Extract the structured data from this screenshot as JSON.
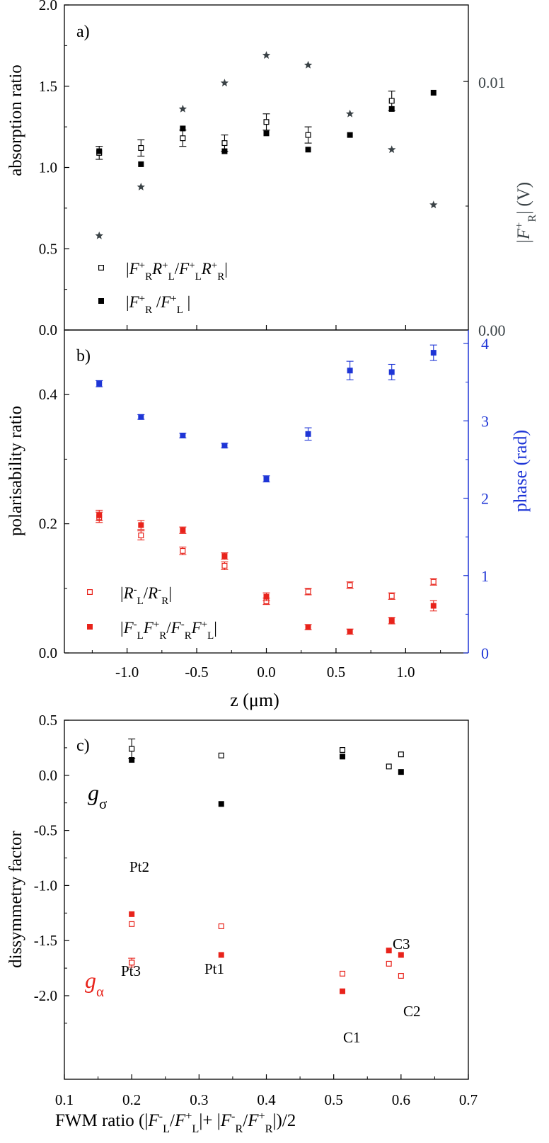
{
  "colors": {
    "black": "#000000",
    "red": "#e8231b",
    "blue": "#1e35d6",
    "grey": "#3a4246"
  },
  "chart_data": [
    {
      "panel_label": "a)",
      "type": "scatter",
      "ylabel": "absorption ratio",
      "ylim": [
        0,
        2
      ],
      "y_ticks": [
        "0.0",
        "0.5",
        "1.0",
        "1.5",
        "2.0"
      ],
      "y2label": "|F⁺R| (V)",
      "y2_scale": "log",
      "y2_ticks": [
        "0.00",
        "0.01"
      ],
      "y2_ticks_note": "right-axis tick labels as printed",
      "legend": [
        {
          "marker": "open-square",
          "label": "|F⁺R R⁺L / F⁺L R⁺R|"
        },
        {
          "marker": "filled-square",
          "label": "|F⁺R / F⁺L|"
        }
      ],
      "series": [
        {
          "name": "|F⁺R R⁺L / F⁺L R⁺R|",
          "marker": "open-square",
          "color": "#000000",
          "x": [
            -1.2,
            -0.9,
            -0.6,
            -0.3,
            0.0,
            0.3,
            0.9
          ],
          "y": [
            1.09,
            1.12,
            1.18,
            1.15,
            1.28,
            1.2,
            1.41
          ],
          "err": [
            0.04,
            0.05,
            0.05,
            0.05,
            0.05,
            0.05,
            0.06
          ]
        },
        {
          "name": "|F⁺R / F⁺L|",
          "marker": "filled-square",
          "color": "#000000",
          "x": [
            -1.2,
            -0.9,
            -0.6,
            -0.3,
            0.0,
            0.3,
            0.6,
            0.9,
            1.2
          ],
          "y": [
            1.1,
            1.02,
            1.24,
            1.1,
            1.21,
            1.11,
            1.2,
            1.36,
            1.46
          ]
        },
        {
          "marker": "star",
          "color": "#3a4246",
          "axis": "right-log",
          "x": [
            -1.2,
            -0.9,
            -0.6,
            -0.3,
            0.0,
            0.3,
            0.6,
            0.9,
            1.2
          ],
          "y_fraction_of_axis": [
            0.29,
            0.44,
            0.68,
            0.76,
            0.845,
            0.815,
            0.665,
            0.555,
            0.385
          ]
        }
      ]
    },
    {
      "panel_label": "b)",
      "type": "scatter",
      "xlabel": "z (μm)",
      "xlim": [
        -1.45,
        1.45
      ],
      "x_ticks": [
        "-1.0",
        "-0.5",
        "0.0",
        "0.5",
        "1.0"
      ],
      "ylabel": "polarisability ratio",
      "ylim": [
        0,
        0.5
      ],
      "y_ticks": [
        "0.0",
        "0.2",
        "0.4"
      ],
      "y2label": "phase (rad)",
      "y2lim": [
        0,
        4
      ],
      "y2_ticks": [
        "0",
        "1",
        "2",
        "3",
        "4"
      ],
      "legend": [
        {
          "marker": "open-square",
          "label": "|R⁻L / R⁻R|"
        },
        {
          "marker": "filled-square",
          "label": "|F⁻L F⁺R / F⁻R F⁺L|"
        }
      ],
      "series": [
        {
          "name": "|R⁻L / R⁻R|",
          "marker": "open-square",
          "color": "#e8231b",
          "x": [
            -1.2,
            -0.9,
            -0.6,
            -0.3,
            0.0,
            0.3,
            0.6,
            0.9,
            1.2
          ],
          "y": [
            0.21,
            0.182,
            0.158,
            0.135,
            0.08,
            0.095,
            0.105,
            0.088,
            0.11
          ],
          "err": [
            0.008,
            0.007,
            0.006,
            0.006,
            0.005,
            0.005,
            0.005,
            0.005,
            0.005
          ]
        },
        {
          "name": "|F⁻L F⁺R / F⁻R F⁺L|",
          "marker": "filled-square",
          "color": "#e8231b",
          "x": [
            -1.2,
            -0.9,
            -0.6,
            -0.3,
            0.0,
            0.3,
            0.6,
            0.9,
            1.2
          ],
          "y": [
            0.213,
            0.198,
            0.19,
            0.15,
            0.087,
            0.04,
            0.033,
            0.05,
            0.073
          ],
          "err": [
            0.008,
            0.007,
            0.005,
            0.005,
            0.006,
            0.004,
            0.004,
            0.005,
            0.008
          ]
        },
        {
          "marker": "filled-square",
          "color": "#1e35d6",
          "axis": "right",
          "x": [
            -1.2,
            -0.9,
            -0.6,
            -0.3,
            0.0,
            0.3,
            0.6,
            0.9,
            1.2
          ],
          "y": [
            3.48,
            3.05,
            2.81,
            2.68,
            2.25,
            2.83,
            3.65,
            3.63,
            3.88
          ],
          "err": [
            0.04,
            0.03,
            0.03,
            0.03,
            0.04,
            0.08,
            0.12,
            0.1,
            0.1
          ]
        }
      ]
    },
    {
      "panel_label": "c)",
      "type": "scatter",
      "xlabel": "FWM ratio (|F⁻L/F⁺L|+ |F⁻R/F⁺R|)/2",
      "xlim": [
        0.1,
        0.7
      ],
      "x_ticks": [
        "0.1",
        "0.2",
        "0.3",
        "0.4",
        "0.5",
        "0.6",
        "0.7"
      ],
      "ylabel": "dissymmetry factor",
      "ylim": [
        -2.3,
        0.5
      ],
      "y_ticks": [
        "-2.0",
        "-1.5",
        "-1.0",
        "-0.5",
        "0.0",
        "0.5"
      ],
      "group_labels": [
        {
          "text": "gσ",
          "color": "#000000"
        },
        {
          "text": "gα",
          "color": "#e8231b"
        }
      ],
      "point_labels": [
        "Pt2",
        "Pt3",
        "Pt1",
        "C1",
        "C3",
        "C2"
      ],
      "series": [
        {
          "marker": "open-square",
          "color": "#000000",
          "x": [
            0.2,
            0.333,
            0.513,
            0.582,
            0.6
          ],
          "y": [
            0.24,
            0.18,
            0.23,
            0.08,
            0.19
          ],
          "err": [
            0.09,
            0,
            0,
            0,
            0
          ]
        },
        {
          "marker": "filled-square",
          "color": "#000000",
          "x": [
            0.2,
            0.333,
            0.513,
            0.6
          ],
          "y": [
            0.14,
            -0.26,
            0.17,
            0.03
          ]
        },
        {
          "marker": "filled-square",
          "color": "#e8231b",
          "x": [
            0.2,
            0.2,
            0.333,
            0.513,
            0.582,
            0.6
          ],
          "y": [
            -1.26,
            -1.7,
            -1.63,
            -1.96,
            -1.59,
            -1.63
          ],
          "err": [
            0,
            0.04,
            0,
            0,
            0,
            0
          ]
        },
        {
          "marker": "open-square",
          "color": "#e8231b",
          "x": [
            0.2,
            0.2,
            0.333,
            0.513,
            0.582,
            0.6
          ],
          "y": [
            -1.35,
            -1.7,
            -1.37,
            -1.8,
            -1.71,
            -1.82
          ]
        }
      ]
    }
  ]
}
